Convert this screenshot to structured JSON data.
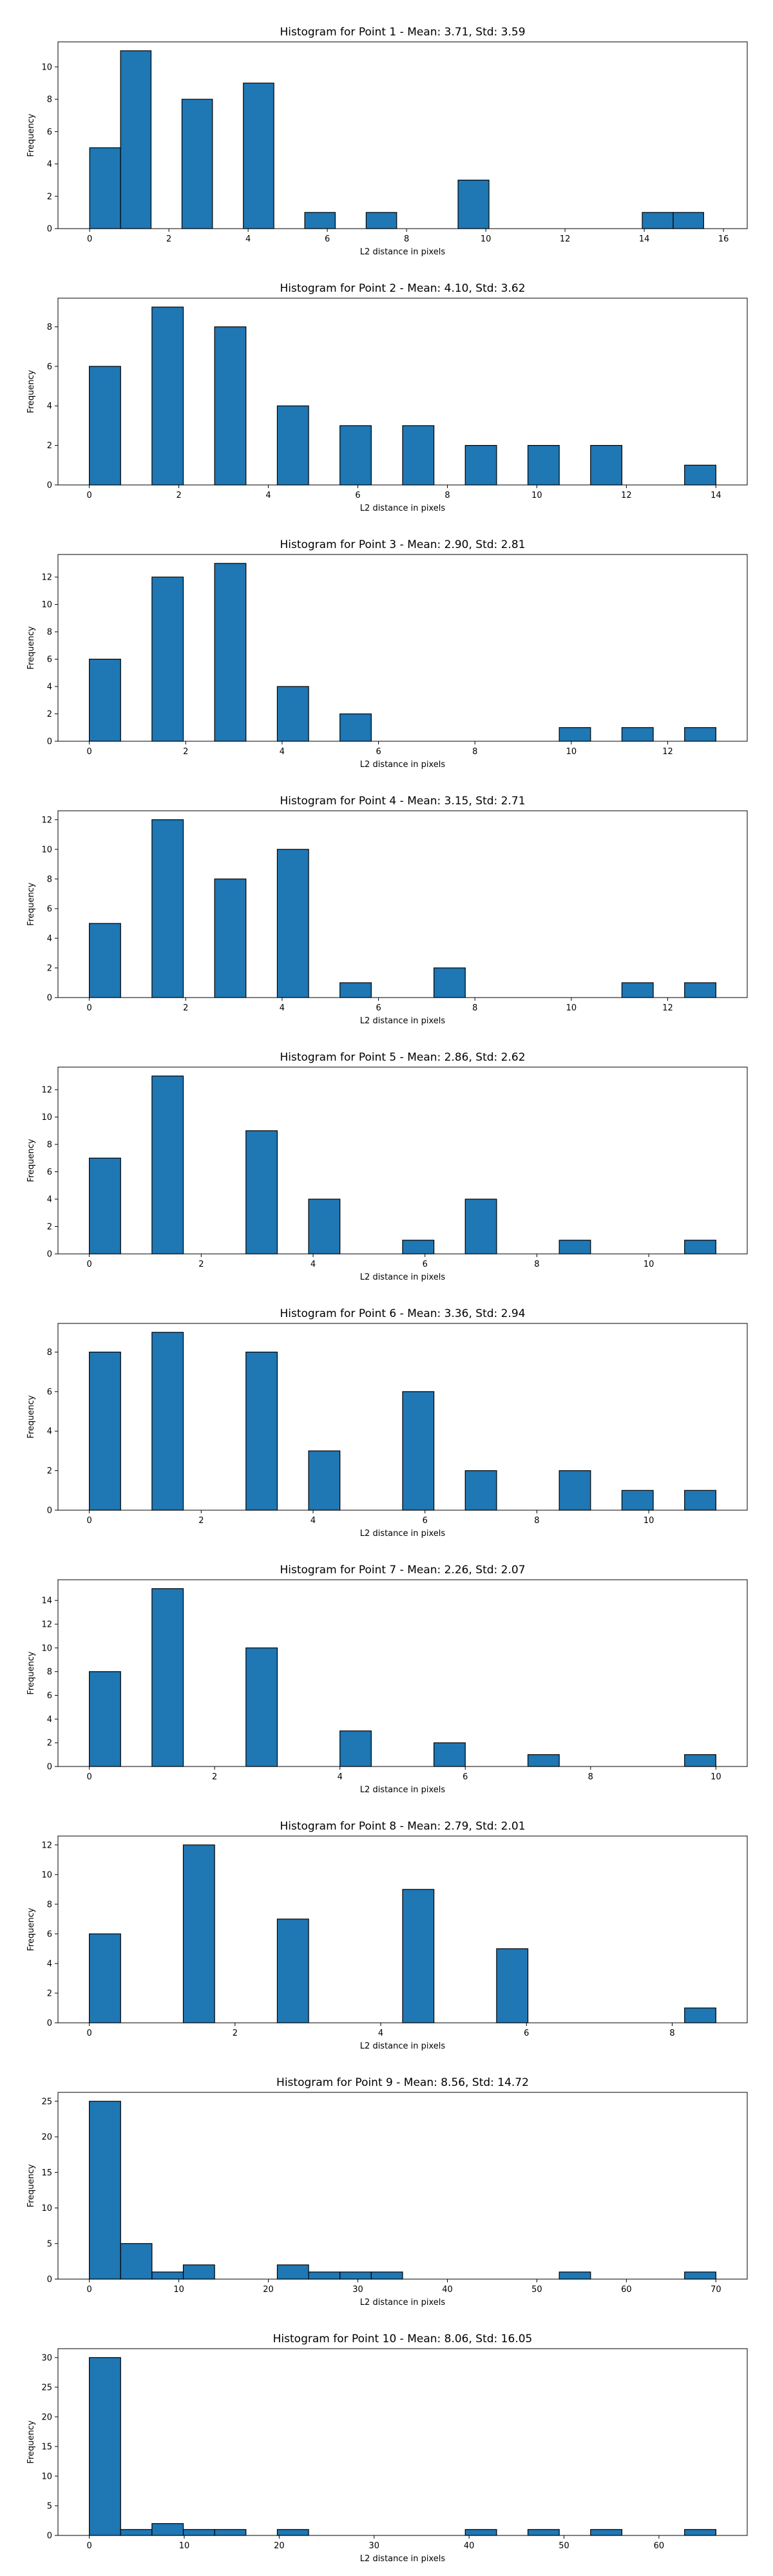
{
  "chart_data": [
    {
      "type": "bar",
      "title": "Histogram for Point 1 - Mean: 3.71, Std: 3.59",
      "xlabel": "L2 distance in pixels",
      "ylabel": "Frequency",
      "xlim": [
        -0.8,
        16.6
      ],
      "ylim": [
        0,
        11.55
      ],
      "xticks": [
        0,
        2,
        4,
        6,
        8,
        10,
        12,
        14,
        16
      ],
      "yticks": [
        0,
        2,
        4,
        6,
        8,
        10
      ],
      "bins": [
        {
          "x0": 0,
          "x1": 0.78,
          "count": 5
        },
        {
          "x0": 0.78,
          "x1": 1.55,
          "count": 11
        },
        {
          "x0": 2.33,
          "x1": 3.1,
          "count": 8
        },
        {
          "x0": 3.88,
          "x1": 4.65,
          "count": 9
        },
        {
          "x0": 5.43,
          "x1": 6.2,
          "count": 1
        },
        {
          "x0": 6.98,
          "x1": 7.75,
          "count": 1
        },
        {
          "x0": 9.3,
          "x1": 10.08,
          "count": 3
        },
        {
          "x0": 13.95,
          "x1": 14.73,
          "count": 1
        },
        {
          "x0": 14.73,
          "x1": 15.5,
          "count": 1
        }
      ]
    },
    {
      "type": "bar",
      "title": "Histogram for Point 2 - Mean: 4.10, Std: 3.62",
      "xlabel": "L2 distance in pixels",
      "ylabel": "Frequency",
      "xlim": [
        -0.7,
        14.7
      ],
      "ylim": [
        0,
        9.45
      ],
      "xticks": [
        0,
        2,
        4,
        6,
        8,
        10,
        12,
        14
      ],
      "yticks": [
        0,
        2,
        4,
        6,
        8
      ],
      "bins": [
        {
          "x0": 0,
          "x1": 0.7,
          "count": 6
        },
        {
          "x0": 1.4,
          "x1": 2.1,
          "count": 9
        },
        {
          "x0": 2.8,
          "x1": 3.5,
          "count": 8
        },
        {
          "x0": 4.2,
          "x1": 4.9,
          "count": 4
        },
        {
          "x0": 5.6,
          "x1": 6.3,
          "count": 3
        },
        {
          "x0": 7,
          "x1": 7.7,
          "count": 3
        },
        {
          "x0": 8.4,
          "x1": 9.1,
          "count": 2
        },
        {
          "x0": 9.8,
          "x1": 10.5,
          "count": 2
        },
        {
          "x0": 11.2,
          "x1": 11.9,
          "count": 2
        },
        {
          "x0": 13.3,
          "x1": 14,
          "count": 1
        }
      ]
    },
    {
      "type": "bar",
      "title": "Histogram for Point 3 - Mean: 2.90, Std: 2.81",
      "xlabel": "L2 distance in pixels",
      "ylabel": "Frequency",
      "xlim": [
        -0.65,
        13.65
      ],
      "ylim": [
        0,
        13.65
      ],
      "xticks": [
        0,
        2,
        4,
        6,
        8,
        10,
        12
      ],
      "yticks": [
        0,
        2,
        4,
        6,
        8,
        10,
        12
      ],
      "bins": [
        {
          "x0": 0,
          "x1": 0.65,
          "count": 6
        },
        {
          "x0": 1.3,
          "x1": 1.95,
          "count": 12
        },
        {
          "x0": 2.6,
          "x1": 3.25,
          "count": 13
        },
        {
          "x0": 3.9,
          "x1": 4.55,
          "count": 4
        },
        {
          "x0": 5.2,
          "x1": 5.85,
          "count": 2
        },
        {
          "x0": 9.75,
          "x1": 10.4,
          "count": 1
        },
        {
          "x0": 11.05,
          "x1": 11.7,
          "count": 1
        },
        {
          "x0": 12.35,
          "x1": 13,
          "count": 1
        }
      ]
    },
    {
      "type": "bar",
      "title": "Histogram for Point 4 - Mean: 3.15, Std: 2.71",
      "xlabel": "L2 distance in pixels",
      "ylabel": "Frequency",
      "xlim": [
        -0.65,
        13.65
      ],
      "ylim": [
        0,
        12.6
      ],
      "xticks": [
        0,
        2,
        4,
        6,
        8,
        10,
        12
      ],
      "yticks": [
        0,
        2,
        4,
        6,
        8,
        10,
        12
      ],
      "bins": [
        {
          "x0": 0,
          "x1": 0.65,
          "count": 5
        },
        {
          "x0": 1.3,
          "x1": 1.95,
          "count": 12
        },
        {
          "x0": 2.6,
          "x1": 3.25,
          "count": 8
        },
        {
          "x0": 3.9,
          "x1": 4.55,
          "count": 10
        },
        {
          "x0": 5.2,
          "x1": 5.85,
          "count": 1
        },
        {
          "x0": 7.15,
          "x1": 7.8,
          "count": 2
        },
        {
          "x0": 11.05,
          "x1": 11.7,
          "count": 1
        },
        {
          "x0": 12.35,
          "x1": 13,
          "count": 1
        }
      ]
    },
    {
      "type": "bar",
      "title": "Histogram for Point 5 - Mean: 2.86, Std: 2.62",
      "xlabel": "L2 distance in pixels",
      "ylabel": "Frequency",
      "xlim": [
        -0.56,
        11.76
      ],
      "ylim": [
        0,
        13.65
      ],
      "xticks": [
        0,
        2,
        4,
        6,
        8,
        10
      ],
      "yticks": [
        0,
        2,
        4,
        6,
        8,
        10,
        12
      ],
      "bins": [
        {
          "x0": 0,
          "x1": 0.56,
          "count": 7
        },
        {
          "x0": 1.12,
          "x1": 1.68,
          "count": 13
        },
        {
          "x0": 2.8,
          "x1": 3.36,
          "count": 9
        },
        {
          "x0": 3.92,
          "x1": 4.48,
          "count": 4
        },
        {
          "x0": 5.6,
          "x1": 6.16,
          "count": 1
        },
        {
          "x0": 6.72,
          "x1": 7.28,
          "count": 4
        },
        {
          "x0": 8.4,
          "x1": 8.96,
          "count": 1
        },
        {
          "x0": 10.64,
          "x1": 11.2,
          "count": 1
        }
      ]
    },
    {
      "type": "bar",
      "title": "Histogram for Point 6 - Mean: 3.36, Std: 2.94",
      "xlabel": "L2 distance in pixels",
      "ylabel": "Frequency",
      "xlim": [
        -0.56,
        11.76
      ],
      "ylim": [
        0,
        9.45
      ],
      "xticks": [
        0,
        2,
        4,
        6,
        8,
        10
      ],
      "yticks": [
        0,
        2,
        4,
        6,
        8
      ],
      "bins": [
        {
          "x0": 0,
          "x1": 0.56,
          "count": 8
        },
        {
          "x0": 1.12,
          "x1": 1.68,
          "count": 9
        },
        {
          "x0": 2.8,
          "x1": 3.36,
          "count": 8
        },
        {
          "x0": 3.92,
          "x1": 4.48,
          "count": 3
        },
        {
          "x0": 5.6,
          "x1": 6.16,
          "count": 6
        },
        {
          "x0": 6.72,
          "x1": 7.28,
          "count": 2
        },
        {
          "x0": 8.4,
          "x1": 8.96,
          "count": 2
        },
        {
          "x0": 9.52,
          "x1": 10.08,
          "count": 1
        },
        {
          "x0": 10.64,
          "x1": 11.2,
          "count": 1
        }
      ]
    },
    {
      "type": "bar",
      "title": "Histogram for Point 7 - Mean: 2.26, Std: 2.07",
      "xlabel": "L2 distance in pixels",
      "ylabel": "Frequency",
      "xlim": [
        -0.5,
        10.5
      ],
      "ylim": [
        0,
        15.75
      ],
      "xticks": [
        0,
        2,
        4,
        6,
        8,
        10
      ],
      "yticks": [
        0,
        2,
        4,
        6,
        8,
        10,
        12,
        14
      ],
      "bins": [
        {
          "x0": 0,
          "x1": 0.5,
          "count": 8
        },
        {
          "x0": 1,
          "x1": 1.5,
          "count": 15
        },
        {
          "x0": 2.5,
          "x1": 3,
          "count": 10
        },
        {
          "x0": 4,
          "x1": 4.5,
          "count": 3
        },
        {
          "x0": 5.5,
          "x1": 6,
          "count": 2
        },
        {
          "x0": 7,
          "x1": 7.5,
          "count": 1
        },
        {
          "x0": 9.5,
          "x1": 10,
          "count": 1
        }
      ]
    },
    {
      "type": "bar",
      "title": "Histogram for Point 8 - Mean: 2.79, Std: 2.01",
      "xlabel": "L2 distance in pixels",
      "ylabel": "Frequency",
      "xlim": [
        -0.43,
        9.03
      ],
      "ylim": [
        0,
        12.6
      ],
      "xticks": [
        0,
        2,
        4,
        6,
        8
      ],
      "yticks": [
        0,
        2,
        4,
        6,
        8,
        10,
        12
      ],
      "bins": [
        {
          "x0": 0,
          "x1": 0.43,
          "count": 6
        },
        {
          "x0": 1.29,
          "x1": 1.72,
          "count": 12
        },
        {
          "x0": 2.58,
          "x1": 3.01,
          "count": 7
        },
        {
          "x0": 4.3,
          "x1": 4.73,
          "count": 9
        },
        {
          "x0": 5.59,
          "x1": 6.02,
          "count": 5
        },
        {
          "x0": 8.17,
          "x1": 8.6,
          "count": 1
        }
      ]
    },
    {
      "type": "bar",
      "title": "Histogram for Point 9 - Mean: 8.56, Std: 14.72",
      "xlabel": "L2 distance in pixels",
      "ylabel": "Frequency",
      "xlim": [
        -3.5,
        73.5
      ],
      "ylim": [
        0,
        26.25
      ],
      "xticks": [
        0,
        10,
        20,
        30,
        40,
        50,
        60,
        70
      ],
      "yticks": [
        0,
        5,
        10,
        15,
        20,
        25
      ],
      "bins": [
        {
          "x0": 0,
          "x1": 3.5,
          "count": 25
        },
        {
          "x0": 3.5,
          "x1": 7,
          "count": 5
        },
        {
          "x0": 7,
          "x1": 10.5,
          "count": 1
        },
        {
          "x0": 10.5,
          "x1": 14,
          "count": 2
        },
        {
          "x0": 21,
          "x1": 24.5,
          "count": 2
        },
        {
          "x0": 24.5,
          "x1": 28,
          "count": 1
        },
        {
          "x0": 28,
          "x1": 31.5,
          "count": 1
        },
        {
          "x0": 31.5,
          "x1": 35,
          "count": 1
        },
        {
          "x0": 52.5,
          "x1": 56,
          "count": 1
        },
        {
          "x0": 66.5,
          "x1": 70,
          "count": 1
        }
      ]
    },
    {
      "type": "bar",
      "title": "Histogram for Point 10 - Mean: 8.06, Std: 16.05",
      "xlabel": "L2 distance in pixels",
      "ylabel": "Frequency",
      "xlim": [
        -3.3,
        69.3
      ],
      "ylim": [
        0,
        31.5
      ],
      "xticks": [
        0,
        10,
        20,
        30,
        40,
        50,
        60
      ],
      "yticks": [
        0,
        5,
        10,
        15,
        20,
        25,
        30
      ],
      "bins": [
        {
          "x0": 0,
          "x1": 3.3,
          "count": 30
        },
        {
          "x0": 3.3,
          "x1": 6.6,
          "count": 1
        },
        {
          "x0": 6.6,
          "x1": 9.9,
          "count": 2
        },
        {
          "x0": 9.9,
          "x1": 13.2,
          "count": 1
        },
        {
          "x0": 13.2,
          "x1": 16.5,
          "count": 1
        },
        {
          "x0": 19.8,
          "x1": 23.1,
          "count": 1
        },
        {
          "x0": 39.6,
          "x1": 42.9,
          "count": 1
        },
        {
          "x0": 46.2,
          "x1": 49.5,
          "count": 1
        },
        {
          "x0": 52.8,
          "x1": 56.1,
          "count": 1
        },
        {
          "x0": 62.7,
          "x1": 66,
          "count": 1
        }
      ]
    }
  ],
  "colors": {
    "bar_fill": "#1f77b4",
    "bar_edge": "#000000"
  }
}
